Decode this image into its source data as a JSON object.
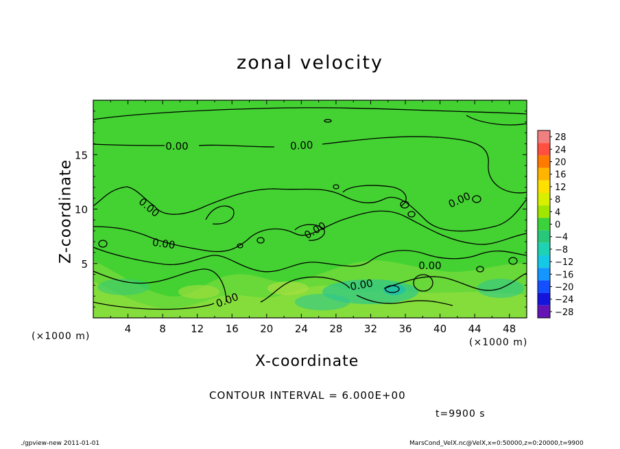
{
  "chart_data": {
    "type": "heatmap",
    "title": "zonal velocity",
    "xlabel": "X-coordinate",
    "ylabel": "Z-coordinate",
    "x_unit": "(×1000 m)",
    "xlim": [
      0,
      50
    ],
    "ylim": [
      0,
      20
    ],
    "x_ticks": [
      4,
      8,
      12,
      16,
      20,
      24,
      28,
      32,
      36,
      40,
      44,
      48
    ],
    "y_ticks": [
      5,
      10,
      15
    ],
    "colorbar": {
      "levels": [
        28,
        24,
        20,
        16,
        12,
        8,
        4,
        0,
        -4,
        -8,
        -12,
        -16,
        -20,
        -24,
        -28
      ],
      "labels": [
        "28",
        "24",
        "20",
        "16",
        "12",
        "8",
        "4",
        "0",
        "−4",
        "−8",
        "−12",
        "−16",
        "−20",
        "−24",
        "−28"
      ],
      "colors": [
        "#f08080",
        "#ff5040",
        "#ff7a00",
        "#ffb400",
        "#ffe000",
        "#d8f000",
        "#a0e600",
        "#3cd23c",
        "#28c87a",
        "#20d2b4",
        "#14c8e6",
        "#1496ff",
        "#1450ff",
        "#1414dc",
        "#6414b4"
      ]
    },
    "contour_label": "0.00",
    "contour_interval": "CONTOUR INTERVAL = 6.000E+00",
    "time": "t=9900 s"
  },
  "footer": {
    "left": "./gpview-new   2011-01-01",
    "right": "MarsCond_VelX.nc@VelX,x=0:50000,z=0:20000,t=9900"
  }
}
